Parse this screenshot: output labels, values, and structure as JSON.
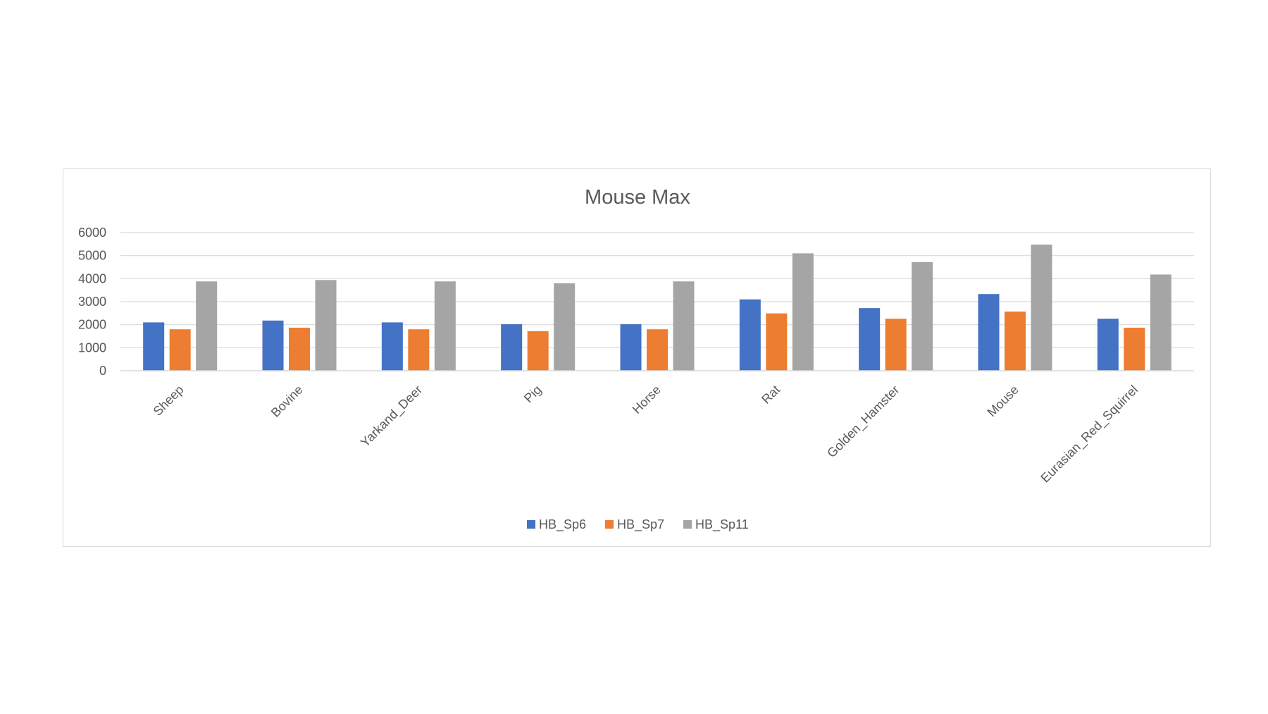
{
  "chart_data": {
    "type": "bar",
    "title": "Mouse Max",
    "xlabel": "",
    "ylabel": "",
    "ylim": [
      0,
      6000
    ],
    "yticks": [
      "0",
      "1000",
      "2000",
      "3000",
      "4000",
      "5000",
      "6000"
    ],
    "grid": true,
    "legend_position": "bottom",
    "categories": [
      "Sheep",
      "Bovine",
      "Yarkand_Deer",
      "Pig",
      "Horse",
      "Rat",
      "Golden_Hamster",
      "Mouse",
      "Eurasian_Red_Squirrel"
    ],
    "series": [
      {
        "name": "HB_Sp6",
        "color": "#4472c4",
        "values": [
          2100,
          2180,
          2100,
          2020,
          2020,
          3100,
          2720,
          3330,
          2260
        ]
      },
      {
        "name": "HB_Sp7",
        "color": "#ed7d31",
        "values": [
          1800,
          1870,
          1800,
          1720,
          1800,
          2490,
          2260,
          2570,
          1870
        ]
      },
      {
        "name": "HB_Sp11",
        "color": "#a5a5a5",
        "values": [
          3880,
          3940,
          3880,
          3800,
          3880,
          5100,
          4720,
          5480,
          4180
        ]
      }
    ]
  }
}
